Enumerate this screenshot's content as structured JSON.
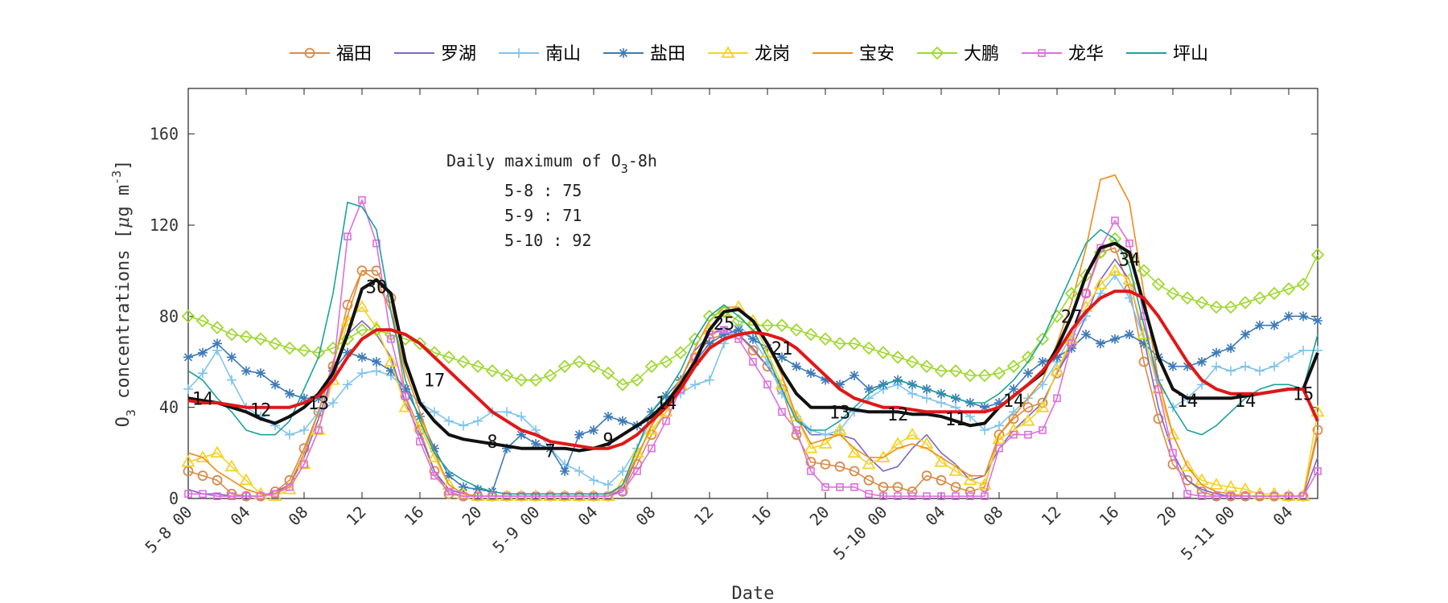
{
  "chart_data": {
    "type": "line",
    "title": "",
    "xlabel": "Date",
    "ylabel": "O3 concentrations [μg m-3]",
    "ylabel_parts": {
      "prefix": "O",
      "sub": "3",
      "main": " concentrations [",
      "mu": "μ",
      "unit": "g m",
      "sup": "-3",
      "close": "]"
    },
    "xlim": [
      0,
      78
    ],
    "ylim": [
      0,
      180
    ],
    "yticks": [
      0,
      40,
      80,
      120,
      160
    ],
    "xticks": [
      {
        "x": 0,
        "label": "5-8 00"
      },
      {
        "x": 4,
        "label": "04"
      },
      {
        "x": 8,
        "label": "08"
      },
      {
        "x": 12,
        "label": "12"
      },
      {
        "x": 16,
        "label": "16"
      },
      {
        "x": 20,
        "label": "20"
      },
      {
        "x": 24,
        "label": "5-9 00"
      },
      {
        "x": 28,
        "label": "04"
      },
      {
        "x": 32,
        "label": "08"
      },
      {
        "x": 36,
        "label": "12"
      },
      {
        "x": 40,
        "label": "16"
      },
      {
        "x": 44,
        "label": "20"
      },
      {
        "x": 48,
        "label": "5-10 00"
      },
      {
        "x": 52,
        "label": "04"
      },
      {
        "x": 56,
        "label": "08"
      },
      {
        "x": 60,
        "label": "12"
      },
      {
        "x": 64,
        "label": "16"
      },
      {
        "x": 68,
        "label": "20"
      },
      {
        "x": 72,
        "label": "5-11 00"
      },
      {
        "x": 76,
        "label": "04"
      }
    ],
    "legend_position": "top",
    "annotation": {
      "title_prefix": "Daily maximum of O",
      "title_sub": "3",
      "title_suffix": "-8h",
      "lines": [
        "5-8 : 75",
        "5-9 : 71",
        "5-10 : 92"
      ]
    },
    "series": [
      {
        "name": "福田",
        "color": "#d98b4a",
        "marker": "circle",
        "values": [
          12,
          10,
          8,
          2,
          1,
          1,
          3,
          8,
          22,
          38,
          58,
          85,
          100,
          100,
          88,
          45,
          30,
          12,
          2,
          1,
          1,
          1,
          1,
          1,
          1,
          1,
          1,
          1,
          1,
          1,
          3,
          15,
          28,
          38,
          48,
          62,
          70,
          72,
          72,
          65,
          58,
          48,
          28,
          16,
          15,
          14,
          12,
          8,
          5,
          5,
          3,
          10,
          8,
          5,
          3,
          5,
          28,
          35,
          40,
          42,
          55,
          68,
          90,
          108,
          110,
          92,
          60,
          35,
          15,
          8,
          3,
          1,
          1,
          1,
          1,
          1,
          1,
          1,
          30
        ]
      },
      {
        "name": "罗湖",
        "color": "#7b68c8",
        "marker": "none",
        "values": [
          4,
          2,
          2,
          1,
          1,
          1,
          3,
          6,
          18,
          35,
          55,
          72,
          78,
          72,
          62,
          42,
          28,
          12,
          4,
          2,
          1,
          1,
          1,
          1,
          1,
          1,
          1,
          1,
          1,
          1,
          4,
          18,
          32,
          42,
          52,
          65,
          72,
          75,
          72,
          66,
          58,
          50,
          36,
          28,
          28,
          28,
          26,
          18,
          12,
          14,
          22,
          28,
          20,
          15,
          8,
          10,
          22,
          30,
          36,
          42,
          55,
          66,
          80,
          96,
          105,
          96,
          70,
          40,
          20,
          8,
          4,
          2,
          1,
          1,
          1,
          1,
          1,
          1,
          18
        ]
      },
      {
        "name": "南山",
        "color": "#7fc3ee",
        "marker": "plus",
        "values": [
          48,
          55,
          65,
          52,
          40,
          36,
          32,
          28,
          30,
          38,
          42,
          50,
          55,
          56,
          54,
          48,
          42,
          38,
          34,
          32,
          34,
          38,
          38,
          36,
          30,
          22,
          15,
          12,
          8,
          6,
          12,
          22,
          35,
          42,
          46,
          50,
          52,
          68,
          76,
          70,
          60,
          46,
          36,
          30,
          28,
          30,
          38,
          44,
          48,
          50,
          46,
          44,
          42,
          40,
          36,
          30,
          32,
          38,
          44,
          50,
          60,
          72,
          80,
          90,
          98,
          88,
          70,
          52,
          40,
          44,
          50,
          58,
          56,
          58,
          56,
          58,
          62,
          65,
          65
        ]
      },
      {
        "name": "盐田",
        "color": "#3d7ab8",
        "marker": "star",
        "values": [
          62,
          64,
          68,
          62,
          56,
          55,
          50,
          46,
          44,
          44,
          56,
          64,
          62,
          60,
          56,
          48,
          36,
          22,
          10,
          5,
          4,
          3,
          22,
          28,
          24,
          22,
          12,
          28,
          30,
          36,
          34,
          32,
          38,
          45,
          52,
          60,
          68,
          72,
          74,
          70,
          66,
          62,
          58,
          55,
          52,
          50,
          54,
          48,
          50,
          52,
          50,
          48,
          46,
          44,
          42,
          40,
          42,
          48,
          55,
          60,
          62,
          66,
          72,
          68,
          70,
          72,
          68,
          62,
          58,
          58,
          60,
          64,
          66,
          72,
          76,
          76,
          80,
          80,
          78
        ]
      },
      {
        "name": "龙岗",
        "color": "#f5d327",
        "marker": "triangle",
        "values": [
          16,
          18,
          20,
          14,
          8,
          2,
          1,
          4,
          15,
          30,
          52,
          78,
          84,
          75,
          60,
          40,
          32,
          18,
          6,
          2,
          1,
          1,
          1,
          1,
          1,
          1,
          1,
          1,
          1,
          1,
          6,
          20,
          30,
          38,
          50,
          62,
          74,
          82,
          84,
          78,
          64,
          50,
          36,
          22,
          24,
          30,
          20,
          15,
          18,
          24,
          28,
          24,
          16,
          12,
          8,
          6,
          26,
          30,
          34,
          40,
          56,
          70,
          84,
          94,
          100,
          96,
          72,
          48,
          28,
          14,
          8,
          6,
          5,
          4,
          2,
          2,
          1,
          1,
          38
        ]
      },
      {
        "name": "宝安",
        "color": "#f08c1a",
        "marker": "none",
        "values": [
          20,
          18,
          12,
          8,
          4,
          2,
          2,
          6,
          20,
          38,
          60,
          80,
          100,
          96,
          82,
          56,
          38,
          20,
          6,
          2,
          1,
          1,
          1,
          1,
          1,
          1,
          1,
          1,
          1,
          1,
          6,
          18,
          32,
          42,
          52,
          66,
          78,
          84,
          84,
          78,
          68,
          54,
          36,
          24,
          26,
          28,
          22,
          18,
          18,
          22,
          24,
          22,
          18,
          14,
          10,
          10,
          28,
          36,
          44,
          52,
          68,
          86,
          110,
          140,
          142,
          130,
          90,
          52,
          28,
          14,
          6,
          3,
          2,
          1,
          1,
          1,
          1,
          1,
          28
        ]
      },
      {
        "name": "大鹏",
        "color": "#9fd92f",
        "marker": "diamond",
        "values": [
          80,
          78,
          75,
          72,
          71,
          70,
          68,
          66,
          65,
          64,
          66,
          70,
          74,
          74,
          72,
          70,
          68,
          64,
          62,
          60,
          58,
          56,
          54,
          52,
          52,
          54,
          58,
          60,
          58,
          55,
          50,
          52,
          58,
          60,
          64,
          70,
          80,
          82,
          78,
          76,
          76,
          76,
          74,
          72,
          70,
          68,
          68,
          66,
          64,
          62,
          60,
          58,
          56,
          56,
          54,
          54,
          55,
          58,
          62,
          70,
          80,
          90,
          98,
          108,
          114,
          106,
          100,
          94,
          90,
          88,
          86,
          84,
          84,
          86,
          88,
          90,
          92,
          94,
          107
        ]
      },
      {
        "name": "龙华",
        "color": "#de6ee0",
        "marker": "square",
        "values": [
          2,
          2,
          1,
          1,
          1,
          1,
          2,
          5,
          15,
          30,
          55,
          115,
          131,
          112,
          70,
          45,
          25,
          10,
          3,
          1,
          1,
          1,
          1,
          1,
          1,
          1,
          1,
          1,
          1,
          1,
          3,
          12,
          22,
          34,
          48,
          62,
          72,
          74,
          70,
          60,
          50,
          38,
          30,
          12,
          5,
          5,
          5,
          2,
          1,
          1,
          1,
          1,
          1,
          1,
          1,
          1,
          22,
          28,
          28,
          30,
          44,
          68,
          90,
          110,
          122,
          112,
          80,
          48,
          20,
          2,
          1,
          1,
          1,
          1,
          1,
          1,
          1,
          1,
          12
        ]
      },
      {
        "name": "坪山",
        "color": "#1aa39a",
        "marker": "none",
        "values": [
          56,
          52,
          44,
          38,
          30,
          28,
          28,
          34,
          48,
          62,
          90,
          130,
          128,
          118,
          82,
          52,
          34,
          20,
          12,
          8,
          5,
          3,
          2,
          2,
          2,
          2,
          2,
          2,
          2,
          2,
          6,
          22,
          38,
          46,
          56,
          70,
          80,
          85,
          80,
          74,
          62,
          48,
          34,
          30,
          30,
          34,
          40,
          46,
          50,
          52,
          50,
          48,
          46,
          44,
          42,
          42,
          46,
          52,
          60,
          70,
          84,
          98,
          112,
          118,
          114,
          102,
          76,
          52,
          40,
          30,
          28,
          32,
          38,
          44,
          48,
          50,
          50,
          48,
          72
        ]
      },
      {
        "name": "",
        "color": "#111111",
        "marker": "none",
        "thick": true,
        "values": [
          44,
          43,
          42,
          40,
          38,
          35,
          33,
          36,
          40,
          46,
          55,
          72,
          92,
          96,
          90,
          60,
          42,
          34,
          28,
          26,
          25,
          24,
          23,
          22,
          22,
          22,
          22,
          21,
          22,
          24,
          28,
          32,
          36,
          42,
          50,
          60,
          74,
          82,
          83,
          78,
          68,
          56,
          46,
          40,
          40,
          40,
          39,
          38,
          38,
          38,
          37,
          37,
          36,
          34,
          32,
          33,
          40,
          45,
          50,
          55,
          66,
          80,
          98,
          110,
          112,
          108,
          85,
          62,
          48,
          44,
          44,
          44,
          44,
          45,
          46,
          47,
          48,
          48,
          64
        ]
      },
      {
        "name": "",
        "color": "#e01818",
        "marker": "none",
        "thick": true,
        "values": [
          43,
          42,
          42,
          41,
          40,
          40,
          40,
          40,
          42,
          45,
          52,
          62,
          70,
          74,
          74,
          72,
          68,
          62,
          56,
          50,
          44,
          38,
          34,
          30,
          28,
          25,
          24,
          23,
          22,
          22,
          24,
          28,
          34,
          40,
          48,
          58,
          66,
          70,
          72,
          73,
          72,
          70,
          66,
          60,
          54,
          48,
          44,
          42,
          40,
          40,
          39,
          38,
          38,
          38,
          38,
          38,
          40,
          45,
          50,
          56,
          64,
          74,
          82,
          88,
          91,
          91,
          88,
          80,
          70,
          60,
          52,
          48,
          46,
          46,
          46,
          47,
          48,
          48,
          34
        ]
      }
    ],
    "mean_labels": [
      {
        "x": 1,
        "y": 44,
        "label": "14"
      },
      {
        "x": 5,
        "y": 39,
        "label": "12"
      },
      {
        "x": 9,
        "y": 42,
        "label": "13"
      },
      {
        "x": 13,
        "y": 93,
        "label": "30"
      },
      {
        "x": 17,
        "y": 52,
        "label": "17"
      },
      {
        "x": 21,
        "y": 25,
        "label": "8"
      },
      {
        "x": 25,
        "y": 21,
        "label": "7"
      },
      {
        "x": 29,
        "y": 26,
        "label": "9"
      },
      {
        "x": 33,
        "y": 42,
        "label": "14"
      },
      {
        "x": 37,
        "y": 77,
        "label": "25"
      },
      {
        "x": 41,
        "y": 66,
        "label": "21"
      },
      {
        "x": 45,
        "y": 38,
        "label": "13"
      },
      {
        "x": 49,
        "y": 37,
        "label": "12"
      },
      {
        "x": 53,
        "y": 35,
        "label": "11"
      },
      {
        "x": 57,
        "y": 43,
        "label": "14"
      },
      {
        "x": 61,
        "y": 80,
        "label": "27"
      },
      {
        "x": 65,
        "y": 105,
        "label": "34"
      },
      {
        "x": 69,
        "y": 43,
        "label": "14"
      },
      {
        "x": 73,
        "y": 43,
        "label": "14"
      },
      {
        "x": 77,
        "y": 46,
        "label": "15"
      }
    ]
  }
}
